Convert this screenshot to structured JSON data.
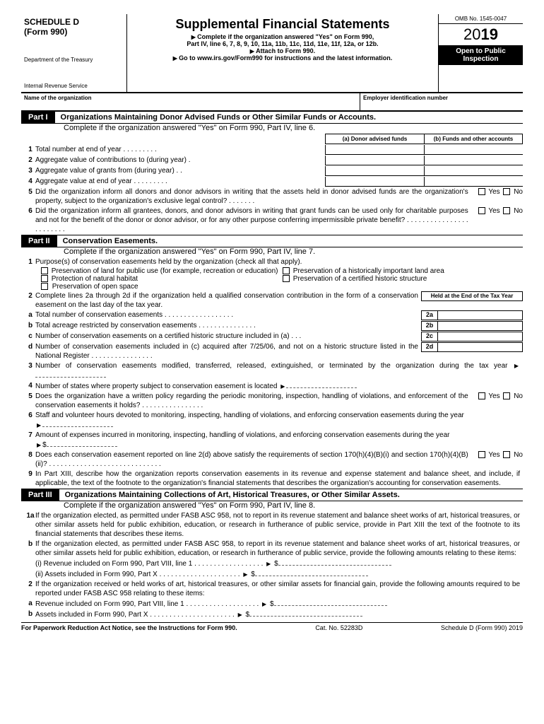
{
  "header": {
    "schedule": "SCHEDULE D",
    "form": "(Form 990)",
    "dept1": "Department of the Treasury",
    "dept2": "Internal Revenue Service",
    "title": "Supplemental Financial Statements",
    "sub1": "Complete if the organization answered \"Yes\" on Form 990,",
    "sub2": "Part IV, line 6, 7, 8, 9, 10, 11a, 11b, 11c, 11d, 11e, 11f, 12a, or 12b.",
    "sub3": "Attach to Form 990.",
    "sub4": "Go to www.irs.gov/Form990 for instructions and the latest information.",
    "omb": "OMB No. 1545-0047",
    "year_prefix": "20",
    "year_bold": "19",
    "open1": "Open to Public",
    "open2": "Inspection",
    "name_label": "Name of the organization",
    "ein_label": "Employer identification number"
  },
  "part1": {
    "tag": "Part I",
    "title": "Organizations Maintaining Donor Advised Funds or Other Similar Funds or Accounts.",
    "sub": "Complete if the organization answered \"Yes\" on Form 990, Part IV, line 6.",
    "col_a": "(a) Donor advised funds",
    "col_b": "(b) Funds and other accounts",
    "l1": "Total number at end of year",
    "l2": "Aggregate value of contributions to (during year)",
    "l3": "Aggregate value of grants from (during year)",
    "l4": "Aggregate value at end of year",
    "l5": "Did the organization inform all donors and donor advisors in writing that the assets held in donor advised funds are the organization's property, subject to the organization's exclusive legal control?",
    "l6": "Did the organization inform all grantees, donors, and donor advisors in writing that grant funds can be used only for charitable purposes and not for the benefit of the donor or donor advisor, or for any other purpose conferring impermissible private benefit?",
    "yes": "Yes",
    "no": "No"
  },
  "part2": {
    "tag": "Part II",
    "title": "Conservation Easements.",
    "sub": "Complete if the organization answered \"Yes\" on Form 990, Part IV, line 7.",
    "l1": "Purpose(s) of conservation easements held by the organization (check all that apply).",
    "c1": "Preservation of land for public use (for example, recreation or education)",
    "c2": "Preservation of a historically important land area",
    "c3": "Protection of natural habitat",
    "c4": "Preservation of a certified historic structure",
    "c5": "Preservation of open space",
    "l2": "Complete lines 2a through 2d if the organization held a qualified conservation contribution in the form of a conservation easement on the last day of the tax year.",
    "endhdr": "Held at the End of the Tax Year",
    "l2a": "Total number of conservation easements",
    "l2b": "Total acreage restricted by conservation easements",
    "l2c": "Number of conservation easements on a certified historic structure included in (a)",
    "l2d": "Number of conservation easements included in (c) acquired after 7/25/06, and not on a historic structure listed in the National Register",
    "b2a": "2a",
    "b2b": "2b",
    "b2c": "2c",
    "b2d": "2d",
    "l3": "Number of conservation easements modified, transferred, released, extinguished, or terminated by the organization during the tax year",
    "l4": "Number of states where property subject to conservation easement is located",
    "l5": "Does the organization have a written policy regarding the periodic monitoring, inspection, handling of violations, and enforcement of the conservation easements it holds?",
    "l6": "Staff and volunteer hours devoted to monitoring, inspecting, handling of violations, and enforcing conservation easements during the year",
    "l7": "Amount of expenses incurred in monitoring, inspecting, handling of violations, and enforcing conservation easements during the year",
    "l8": "Does each conservation easement reported on line 2(d) above satisfy the requirements of section 170(h)(4)(B)(i) and section 170(h)(4)(B)(ii)?",
    "l9": "In Part XIII, describe how the organization reports conservation easements in its revenue and expense statement and balance sheet, and include, if applicable, the text of the footnote to the organization's financial statements that describes the organization's accounting for conservation easements.",
    "yes": "Yes",
    "no": "No",
    "dollar": "$"
  },
  "part3": {
    "tag": "Part III",
    "title": "Organizations Maintaining Collections of Art, Historical Treasures, or Other Similar Assets.",
    "sub": "Complete if the organization answered \"Yes\" on Form 990, Part IV, line 8.",
    "l1a": "If the organization elected, as permitted under FASB ASC 958, not to report in its revenue statement and balance sheet works of art, historical treasures, or other similar assets held for public exhibition, education, or research in furtherance of public service, provide in Part XIII the text of the footnote to its financial statements that describes these items.",
    "l1b": "If the organization elected, as permitted under FASB ASC 958, to report in its revenue statement and balance sheet works of art, historical treasures, or other similar assets held for public exhibition, education, or research in furtherance of public service, provide the following amounts relating to these items:",
    "l1bi": "(i) Revenue included on Form 990, Part VIII, line 1",
    "l1bii": "(ii) Assets included in Form 990, Part X",
    "l2": "If the organization received or held works of art, historical treasures, or other similar assets for financial gain, provide the following amounts required to be reported under FASB ASC 958 relating to these items:",
    "l2a": "Revenue included on Form 990, Part VIII, line 1",
    "l2b": "Assets included in Form 990, Part X",
    "dollar": "$"
  },
  "footer": {
    "left": "For Paperwork Reduction Act Notice, see the Instructions for Form 990.",
    "mid": "Cat. No. 52283D",
    "right": "Schedule D (Form 990) 2019"
  }
}
